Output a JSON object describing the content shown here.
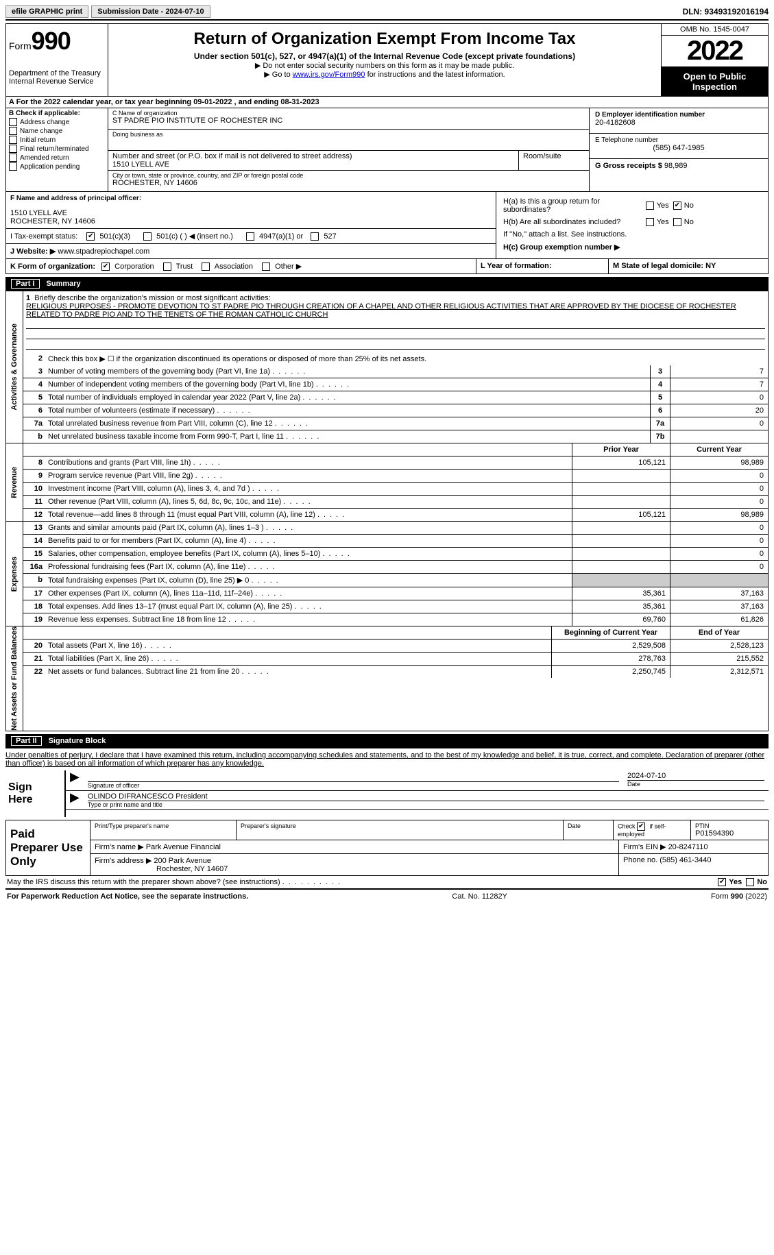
{
  "top": {
    "efile_btn": "efile GRAPHIC print",
    "sub_btn": "Submission Date - 2024-07-10",
    "dln": "DLN: 93493192016194"
  },
  "header": {
    "form_word": "Form",
    "form_num": "990",
    "dept": "Department of the Treasury Internal Revenue Service",
    "title": "Return of Organization Exempt From Income Tax",
    "sub1": "Under section 501(c), 527, or 4947(a)(1) of the Internal Revenue Code (except private foundations)",
    "sub2a": "▶ Do not enter social security numbers on this form as it may be made public.",
    "sub2b_pre": "▶ Go to ",
    "sub2b_link": "www.irs.gov/Form990",
    "sub2b_post": " for instructions and the latest information.",
    "omb": "OMB No. 1545-0047",
    "year": "2022",
    "inspection": "Open to Public Inspection"
  },
  "row_a": "A  For the 2022 calendar year, or tax year beginning 09-01-2022    , and ending 08-31-2023",
  "col_b": {
    "header": "B Check if applicable:",
    "items": [
      "Address change",
      "Name change",
      "Initial return",
      "Final return/terminated",
      "Amended return",
      "Application pending"
    ]
  },
  "col_c": {
    "name_lbl": "C Name of organization",
    "name": "ST PADRE PIO INSTITUTE OF ROCHESTER INC",
    "dba_lbl": "Doing business as",
    "dba": "",
    "street_lbl": "Number and street (or P.O. box if mail is not delivered to street address)",
    "street": "1510 LYELL AVE",
    "room_lbl": "Room/suite",
    "room": "",
    "city_lbl": "City or town, state or province, country, and ZIP or foreign postal code",
    "city": "ROCHESTER, NY  14606"
  },
  "col_de": {
    "ein_lbl": "D Employer identification number",
    "ein": "20-4182608",
    "tel_lbl": "E Telephone number",
    "tel": "(585) 647-1985",
    "gross_lbl": "G Gross receipts $",
    "gross": "98,989"
  },
  "f": {
    "lbl": "F Name and address of principal officer:",
    "line1": "",
    "line2": "1510 LYELL AVE",
    "line3": "ROCHESTER, NY  14606"
  },
  "i": {
    "lbl": "I   Tax-exempt status:",
    "o1": "501(c)(3)",
    "o2": "501(c) (   ) ◀ (insert no.)",
    "o3": "4947(a)(1) or",
    "o4": "527"
  },
  "j": {
    "lbl": "J   Website: ▶",
    "val": "www.stpadrepiochapel.com"
  },
  "h": {
    "a_lbl": "H(a)  Is this a group return for subordinates?",
    "b_lbl": "H(b)  Are all subordinates included?",
    "b_note": "If \"No,\" attach a list. See instructions.",
    "c_lbl": "H(c)  Group exemption number ▶",
    "yes": "Yes",
    "no": "No"
  },
  "k": {
    "lbl": "K Form of organization:",
    "o1": "Corporation",
    "o2": "Trust",
    "o3": "Association",
    "o4": "Other ▶",
    "l": "L Year of formation:",
    "m": "M State of legal domicile: NY"
  },
  "part1": {
    "num": "Part I",
    "title": "Summary"
  },
  "mission": {
    "n": "1",
    "lbl": "Briefly describe the organization's mission or most significant activities:",
    "text": "RELIGIOUS PURPOSES - PROMOTE DEVOTION TO ST PADRE PIO THROUGH CREATION OF A CHAPEL AND OTHER RELIGIOUS ACTIVITIES THAT ARE APPROVED BY THE DIOCESE OF ROCHESTER RELATED TO PADRE PIO AND TO THE TENETS OF THE ROMAN CATHOLIC CHURCH"
  },
  "lines_top": [
    {
      "n": "2",
      "t": "Check this box ▶ ☐ if the organization discontinued its operations or disposed of more than 25% of its net assets."
    },
    {
      "n": "3",
      "t": "Number of voting members of the governing body (Part VI, line 1a)",
      "bn": "3",
      "v": "7"
    },
    {
      "n": "4",
      "t": "Number of independent voting members of the governing body (Part VI, line 1b)",
      "bn": "4",
      "v": "7"
    },
    {
      "n": "5",
      "t": "Total number of individuals employed in calendar year 2022 (Part V, line 2a)",
      "bn": "5",
      "v": "0"
    },
    {
      "n": "6",
      "t": "Total number of volunteers (estimate if necessary)",
      "bn": "6",
      "v": "20"
    },
    {
      "n": "7a",
      "t": "Total unrelated business revenue from Part VIII, column (C), line 12",
      "bn": "7a",
      "v": "0"
    },
    {
      "n": "b",
      "t": "Net unrelated business taxable income from Form 990-T, Part I, line 11",
      "bn": "7b",
      "v": ""
    }
  ],
  "hdr_py": "Prior Year",
  "hdr_cy": "Current Year",
  "revenue_rows": [
    {
      "n": "8",
      "t": "Contributions and grants (Part VIII, line 1h)",
      "py": "105,121",
      "cy": "98,989"
    },
    {
      "n": "9",
      "t": "Program service revenue (Part VIII, line 2g)",
      "py": "",
      "cy": "0"
    },
    {
      "n": "10",
      "t": "Investment income (Part VIII, column (A), lines 3, 4, and 7d )",
      "py": "",
      "cy": "0"
    },
    {
      "n": "11",
      "t": "Other revenue (Part VIII, column (A), lines 5, 6d, 8c, 9c, 10c, and 11e)",
      "py": "",
      "cy": "0"
    },
    {
      "n": "12",
      "t": "Total revenue—add lines 8 through 11 (must equal Part VIII, column (A), line 12)",
      "py": "105,121",
      "cy": "98,989"
    }
  ],
  "expense_rows": [
    {
      "n": "13",
      "t": "Grants and similar amounts paid (Part IX, column (A), lines 1–3 )",
      "py": "",
      "cy": "0"
    },
    {
      "n": "14",
      "t": "Benefits paid to or for members (Part IX, column (A), line 4)",
      "py": "",
      "cy": "0"
    },
    {
      "n": "15",
      "t": "Salaries, other compensation, employee benefits (Part IX, column (A), lines 5–10)",
      "py": "",
      "cy": "0"
    },
    {
      "n": "16a",
      "t": "Professional fundraising fees (Part IX, column (A), line 11e)",
      "py": "",
      "cy": "0"
    },
    {
      "n": "b",
      "t": "Total fundraising expenses (Part IX, column (D), line 25) ▶ 0",
      "py": "shade",
      "cy": "shade"
    },
    {
      "n": "17",
      "t": "Other expenses (Part IX, column (A), lines 11a–11d, 11f–24e)",
      "py": "35,361",
      "cy": "37,163"
    },
    {
      "n": "18",
      "t": "Total expenses. Add lines 13–17 (must equal Part IX, column (A), line 25)",
      "py": "35,361",
      "cy": "37,163"
    },
    {
      "n": "19",
      "t": "Revenue less expenses. Subtract line 18 from line 12",
      "py": "69,760",
      "cy": "61,826"
    }
  ],
  "hdr_boy": "Beginning of Current Year",
  "hdr_eoy": "End of Year",
  "net_rows": [
    {
      "n": "20",
      "t": "Total assets (Part X, line 16)",
      "py": "2,529,508",
      "cy": "2,528,123"
    },
    {
      "n": "21",
      "t": "Total liabilities (Part X, line 26)",
      "py": "278,763",
      "cy": "215,552"
    },
    {
      "n": "22",
      "t": "Net assets or fund balances. Subtract line 21 from line 20",
      "py": "2,250,745",
      "cy": "2,312,571"
    }
  ],
  "sidebars": {
    "ag": "Activities & Governance",
    "rev": "Revenue",
    "exp": "Expenses",
    "net": "Net Assets or Fund Balances"
  },
  "part2": {
    "num": "Part II",
    "title": "Signature Block"
  },
  "penalty": "Under penalties of perjury, I declare that I have examined this return, including accompanying schedules and statements, and to the best of my knowledge and belief, it is true, correct, and complete. Declaration of preparer (other than officer) is based on all information of which preparer has any knowledge.",
  "sign": {
    "lbl": "Sign Here",
    "sig_lbl": "Signature of officer",
    "date_lbl": "Date",
    "date": "2024-07-10",
    "name": "OLINDO DIFRANCESCO  President",
    "name_lbl": "Type or print name and title"
  },
  "prep": {
    "lbl": "Paid Preparer Use Only",
    "p1": "Print/Type preparer's name",
    "p2": "Preparer's signature",
    "p3": "Date",
    "p4a": "Check",
    "p4b": "if self-employed",
    "p5": "PTIN",
    "ptin": "P01594390",
    "firm_name_lbl": "Firm's name    ▶",
    "firm_name": "Park Avenue Financial",
    "firm_ein_lbl": "Firm's EIN ▶",
    "firm_ein": "20-8247110",
    "firm_addr_lbl": "Firm's address ▶",
    "firm_addr1": "200 Park Avenue",
    "firm_addr2": "Rochester, NY  14607",
    "phone_lbl": "Phone no.",
    "phone": "(585) 461-3440"
  },
  "discuss": "May the IRS discuss this return with the preparer shown above? (see instructions)",
  "footer": {
    "left": "For Paperwork Reduction Act Notice, see the separate instructions.",
    "mid": "Cat. No. 11282Y",
    "right": "Form 990 (2022)"
  }
}
